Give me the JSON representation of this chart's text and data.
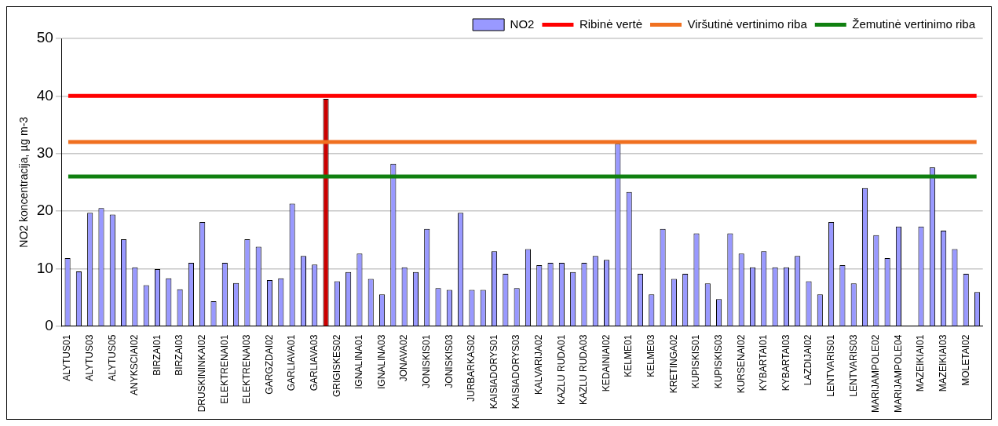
{
  "chart_data": {
    "type": "bar",
    "ylabel": "NO2 koncentracija, µg m-3",
    "categories": [
      "ALYTUS01",
      null,
      "ALYTUS03",
      null,
      "ALYTUS05",
      null,
      "ANYKSCIAI02",
      null,
      "BIRZAI01",
      null,
      "BIRZAI03",
      null,
      "DRUSKININKAI02",
      null,
      "ELEKTRENAI01",
      null,
      "ELEKTRENAI03",
      null,
      "GARGZDAI02",
      null,
      "GARLIAVA01",
      null,
      "GARLIAVA03",
      null,
      "GRIGISKES02",
      null,
      "IGNALINA01",
      null,
      "IGNALINA03",
      null,
      "JONAVA02",
      null,
      "JONISKIS01",
      null,
      "JONISKIS03",
      null,
      "JURBARKAS02",
      null,
      "KAISIADORYS01",
      null,
      "KAISIADORYS03",
      null,
      "KALVARIJA02",
      null,
      "KAZLU RUDA01",
      null,
      "KAZLU RUDA03",
      null,
      "KEDAINIAI02",
      null,
      "KELME01",
      null,
      "KELME03",
      null,
      "KRETINGA02",
      null,
      "KUPISKIS01",
      null,
      "KUPISKIS03",
      null,
      "KURSENAI02",
      null,
      "KYBARTAI01",
      null,
      "KYBARTAI03",
      null,
      "LAZDIJAI02",
      null,
      "LENTVARIS01",
      null,
      "LENTVARIS03",
      null,
      "MARIJAMPOLE02",
      null,
      "MARIJAMPOLE04",
      null,
      "MAZEIKIAI01",
      null,
      "MAZEIKIAI03",
      null,
      "MOLETAI02",
      null
    ],
    "series": [
      {
        "name": "NO2",
        "color": "#9999ff",
        "values": [
          11.8,
          9.5,
          19.7,
          20.5,
          19.4,
          15.1,
          10.2,
          7.1,
          9.9,
          8.3,
          6.4,
          11.0,
          18.1,
          4.3,
          11.0,
          7.5,
          15.1,
          13.8,
          8.0,
          8.3,
          21.3,
          12.2,
          10.7,
          39.5,
          7.8,
          9.4,
          12.6,
          8.2,
          5.5,
          28.2,
          10.2,
          9.4,
          16.9,
          6.6,
          6.3,
          19.7,
          6.3,
          6.3,
          13.0,
          9.1,
          6.6,
          13.4,
          10.6,
          11.0,
          11.0,
          9.4,
          11.0,
          12.2,
          11.5,
          31.7,
          23.3,
          9.1,
          5.5,
          16.9,
          8.2,
          9.1,
          16.1,
          7.4,
          4.7,
          16.1,
          12.6,
          10.2,
          13.0,
          10.2,
          10.2,
          12.2,
          7.8,
          5.5,
          18.1,
          10.6,
          7.4,
          24.0,
          15.8,
          11.8,
          17.3,
          null,
          17.3,
          27.6,
          16.6,
          13.4,
          9.1,
          5.9
        ],
        "colors": [
          "#9999ff",
          "#9999ff",
          "#9999ff",
          "#9999ff",
          "#9999ff",
          "#9999ff",
          "#9999ff",
          "#9999ff",
          "#9999ff",
          "#9999ff",
          "#9999ff",
          "#9999ff",
          "#9999ff",
          "#9999ff",
          "#9999ff",
          "#9999ff",
          "#9999ff",
          "#9999ff",
          "#9999ff",
          "#9999ff",
          "#9999ff",
          "#9999ff",
          "#9999ff",
          "#cc0000",
          "#9999ff",
          "#9999ff",
          "#9999ff",
          "#9999ff",
          "#9999ff",
          "#9999ff",
          "#9999ff",
          "#9999ff",
          "#9999ff",
          "#9999ff",
          "#9999ff",
          "#9999ff",
          "#9999ff",
          "#9999ff",
          "#9999ff",
          "#9999ff",
          "#9999ff",
          "#9999ff",
          "#9999ff",
          "#9999ff",
          "#9999ff",
          "#9999ff",
          "#9999ff",
          "#9999ff",
          "#9999ff",
          "#9999ff",
          "#9999ff",
          "#9999ff",
          "#9999ff",
          "#9999ff",
          "#9999ff",
          "#9999ff",
          "#9999ff",
          "#9999ff",
          "#9999ff",
          "#9999ff",
          "#9999ff",
          "#9999ff",
          "#9999ff",
          "#9999ff",
          "#9999ff",
          "#9999ff",
          "#9999ff",
          "#9999ff",
          "#9999ff",
          "#9999ff",
          "#9999ff",
          "#9999ff",
          "#9999ff",
          "#9999ff",
          "#9999ff",
          "#9999ff",
          "#9999ff",
          "#9999ff",
          "#9999ff",
          "#9999ff",
          "#9999ff",
          "#9999ff"
        ]
      }
    ],
    "ref_lines": [
      {
        "axis": "y",
        "value": 40,
        "label": "Ribinė vertė",
        "color": "#ff0000"
      },
      {
        "axis": "y",
        "value": 32,
        "label": "Viršutinė vertinimo riba",
        "color": "#f07020"
      },
      {
        "axis": "y",
        "value": 26,
        "label": "Žemutinė vertinimo riba",
        "color": "#108010"
      }
    ],
    "ylim": [
      0,
      50
    ],
    "yticks": [
      0,
      10,
      20,
      30,
      40,
      50
    ],
    "grid": "y",
    "legend": "top right"
  }
}
